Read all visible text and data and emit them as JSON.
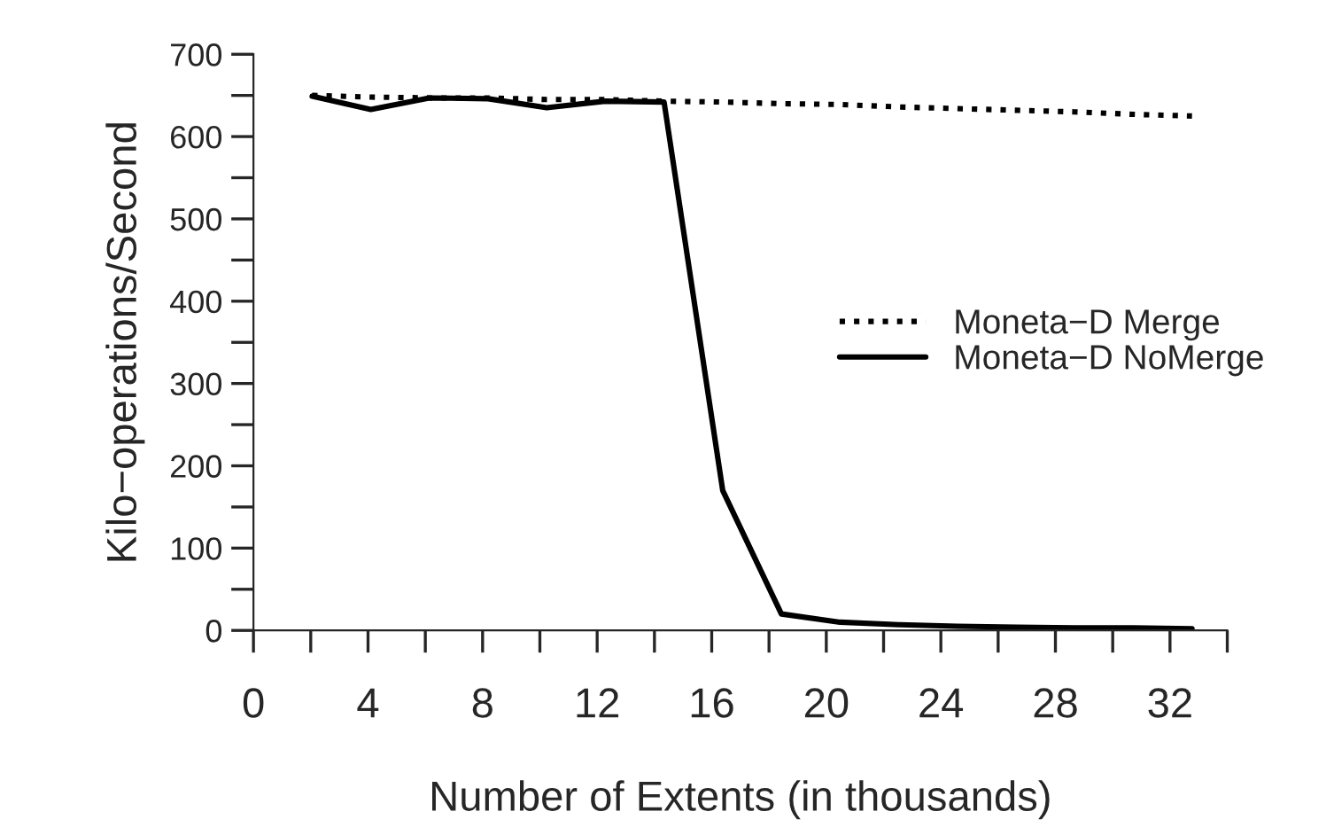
{
  "chart_data": {
    "type": "line",
    "xlabel": "Number of Extents (in thousands)",
    "ylabel": "Kilo−operations/Second",
    "xlim": [
      0,
      34
    ],
    "ylim": [
      0,
      700
    ],
    "xticks": [
      0,
      {
        "value": 2,
        "label": null
      },
      4,
      {
        "value": 6,
        "label": null
      },
      8,
      {
        "value": 10,
        "label": null
      },
      12,
      {
        "value": 14,
        "label": null
      },
      16,
      {
        "value": 18,
        "label": null
      },
      20,
      {
        "value": 22,
        "label": null
      },
      24,
      {
        "value": 26,
        "label": null
      },
      28,
      {
        "value": 30,
        "label": null
      },
      32,
      {
        "value": 34,
        "label": null
      }
    ],
    "yticks": [
      0,
      {
        "value": 50,
        "label": null
      },
      100,
      {
        "value": 150,
        "label": null
      },
      200,
      {
        "value": 250,
        "label": null
      },
      300,
      {
        "value": 350,
        "label": null
      },
      400,
      {
        "value": 450,
        "label": null
      },
      500,
      {
        "value": 550,
        "label": null
      },
      600,
      {
        "value": 650,
        "label": null
      },
      700
    ],
    "x": [
      2.048,
      4.096,
      6.144,
      8.192,
      10.24,
      12.288,
      14.336,
      16.384,
      18.432,
      20.48,
      22.528,
      24.576,
      26.624,
      28.672,
      30.72,
      32.768
    ],
    "series": [
      {
        "name": "Moneta−D Merge",
        "color": "#000000",
        "line_style": "dotted",
        "values": [
          650,
          648,
          647,
          647,
          645,
          645,
          643,
          642,
          640,
          639,
          636,
          634,
          632,
          630,
          627,
          625
        ]
      },
      {
        "name": "Moneta−D NoMerge",
        "color": "#000000",
        "line_style": "solid",
        "values": [
          649,
          633,
          647,
          646,
          635,
          643,
          642,
          170,
          20,
          10,
          7,
          5,
          4,
          3,
          3,
          2
        ]
      }
    ],
    "legend": "center right",
    "grid": false,
    "marker": "none"
  }
}
